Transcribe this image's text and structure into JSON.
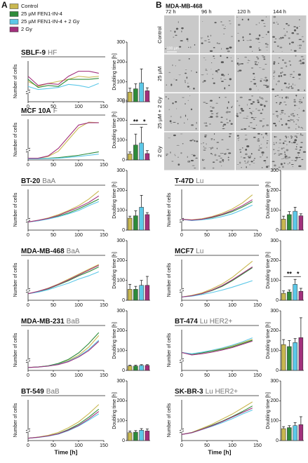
{
  "figure": {
    "panel_labels": [
      "A",
      "B"
    ],
    "legend": [
      {
        "name": "Control",
        "color": "#c9b850"
      },
      {
        "name": "25 µM FEN1-IN-4",
        "color": "#2e8b3a"
      },
      {
        "name": "25 µM FEN1-IN-4 + 2 Gy",
        "color": "#5cc8e8"
      },
      {
        "name": "2 Gy",
        "color": "#a2307c"
      }
    ],
    "axis_labels": {
      "cells": "Number of cells",
      "doubling": "Doubling time [h]",
      "time": "Time [h]"
    },
    "images": {
      "title": "MDA-MB-468",
      "columns": [
        "72 h",
        "96 h",
        "120 h",
        "144 h"
      ],
      "rows": [
        "Control",
        "25 µM",
        "25 µM + 2 Gy",
        "2 Gy"
      ],
      "scale_bar": "100 µm"
    }
  },
  "chart_data": [
    {
      "type": "line",
      "title": "SBLF-9",
      "subtitle": "HF",
      "x": [
        0,
        20,
        40,
        60,
        80,
        100,
        120,
        140
      ],
      "xlim": [
        0,
        150
      ],
      "xticks": [
        0,
        50,
        100,
        150
      ],
      "ylim": [
        0,
        40
      ],
      "series": [
        {
          "values": [
            20,
            15,
            18,
            20,
            22,
            25,
            24,
            25
          ]
        },
        {
          "values": [
            22,
            14,
            16,
            15,
            22,
            22,
            22,
            23
          ]
        },
        {
          "values": [
            15,
            12,
            13,
            14,
            17,
            16,
            14,
            18
          ]
        },
        {
          "values": [
            25,
            16,
            18,
            17,
            25,
            30,
            30,
            28
          ]
        }
      ]
    },
    {
      "type": "bar",
      "values": [
        48,
        65,
        95,
        55
      ],
      "errors": [
        20,
        25,
        70,
        15
      ],
      "ylim": [
        0,
        300
      ],
      "yticks": [
        0,
        100,
        200,
        300
      ]
    },
    {
      "type": "line",
      "title": "MCF 10A",
      "subtitle": "F",
      "x": [
        0,
        20,
        40,
        60,
        80,
        100,
        120,
        140
      ],
      "xlim": [
        0,
        150
      ],
      "xticks": [
        0,
        50,
        100,
        150
      ],
      "ylim": [
        0,
        700
      ],
      "series": [
        {
          "values": [
            30,
            30,
            60,
            150,
            350,
            550,
            650,
            640
          ]
        },
        {
          "values": [
            25,
            25,
            30,
            40,
            60,
            80,
            110,
            140
          ]
        },
        {
          "values": [
            20,
            20,
            25,
            30,
            45,
            60,
            80,
            100
          ]
        },
        {
          "values": [
            30,
            30,
            70,
            200,
            400,
            600,
            640,
            640
          ]
        }
      ]
    },
    {
      "type": "bar",
      "values": [
        30,
        75,
        85,
        32
      ],
      "errors": [
        10,
        55,
        80,
        15
      ],
      "ylim": [
        0,
        300
      ],
      "yticks": [
        0,
        100,
        200,
        300
      ],
      "annotations": [
        "**",
        "*"
      ]
    },
    {
      "type": "line",
      "title": "BT-20",
      "subtitle": "BaA",
      "x": [
        0,
        20,
        40,
        60,
        80,
        100,
        120,
        140
      ],
      "xlim": [
        0,
        150
      ],
      "xticks": [
        0,
        50,
        100,
        150
      ],
      "ylim": [
        0,
        250
      ],
      "series": [
        {
          "values": [
            50,
            60,
            75,
            95,
            120,
            150,
            190,
            240
          ]
        },
        {
          "values": [
            50,
            58,
            70,
            85,
            105,
            130,
            160,
            190
          ]
        },
        {
          "values": [
            50,
            57,
            68,
            82,
            100,
            120,
            150,
            175
          ]
        },
        {
          "values": [
            50,
            60,
            72,
            90,
            115,
            140,
            170,
            210
          ]
        }
      ]
    },
    {
      "type": "bar",
      "values": [
        60,
        72,
        115,
        78
      ],
      "errors": [
        10,
        25,
        60,
        10
      ],
      "ylim": [
        0,
        300
      ],
      "yticks": [
        0,
        100,
        200,
        300
      ]
    },
    {
      "type": "line",
      "title": "MDA-MB-468",
      "subtitle": "BaA",
      "x": [
        0,
        20,
        40,
        60,
        80,
        100,
        120,
        140
      ],
      "xlim": [
        0,
        150
      ],
      "xticks": [
        0,
        50,
        100,
        150
      ],
      "ylim": [
        0,
        500
      ],
      "series": [
        {
          "values": [
            80,
            110,
            150,
            200,
            260,
            320,
            380,
            440
          ]
        },
        {
          "values": [
            80,
            105,
            140,
            190,
            240,
            300,
            350,
            410
          ]
        },
        {
          "values": [
            80,
            100,
            130,
            170,
            210,
            260,
            300,
            350
          ]
        },
        {
          "values": [
            80,
            110,
            145,
            195,
            250,
            310,
            370,
            430
          ]
        }
      ]
    },
    {
      "type": "bar",
      "values": [
        55,
        55,
        75,
        75
      ],
      "errors": [
        25,
        15,
        25,
        45
      ],
      "ylim": [
        0,
        300
      ],
      "yticks": [
        0,
        100,
        200,
        300
      ]
    },
    {
      "type": "line",
      "title": "MDA-MB-231",
      "subtitle": "BaB",
      "x": [
        0,
        20,
        40,
        60,
        80,
        100,
        120,
        140
      ],
      "xlim": [
        0,
        150
      ],
      "xticks": [
        0,
        50,
        100,
        150
      ],
      "ylim": [
        0,
        700
      ],
      "series": [
        {
          "values": [
            50,
            60,
            80,
            110,
            170,
            260,
            400,
            600
          ]
        },
        {
          "values": [
            50,
            60,
            80,
            120,
            190,
            300,
            460,
            650
          ]
        },
        {
          "values": [
            50,
            58,
            75,
            105,
            160,
            240,
            360,
            520
          ]
        },
        {
          "values": [
            50,
            58,
            74,
            100,
            150,
            230,
            340,
            500
          ]
        }
      ]
    },
    {
      "type": "bar",
      "values": [
        22,
        22,
        25,
        25
      ],
      "errors": [
        4,
        4,
        4,
        4
      ],
      "ylim": [
        0,
        300
      ],
      "yticks": [
        0,
        100,
        200,
        300
      ]
    },
    {
      "type": "line",
      "title": "BT-549",
      "subtitle": "BaB",
      "x": [
        0,
        20,
        40,
        60,
        80,
        100,
        120,
        140
      ],
      "xlim": [
        0,
        150
      ],
      "xticks": [
        0,
        50,
        100,
        150
      ],
      "ylim": [
        0,
        350
      ],
      "series": [
        {
          "values": [
            20,
            30,
            45,
            70,
            110,
            160,
            230,
            310
          ]
        },
        {
          "values": [
            20,
            28,
            40,
            60,
            95,
            140,
            200,
            270
          ]
        },
        {
          "values": [
            20,
            27,
            38,
            55,
            85,
            125,
            175,
            230
          ]
        },
        {
          "values": [
            20,
            28,
            40,
            58,
            90,
            130,
            185,
            250
          ]
        }
      ]
    },
    {
      "type": "bar",
      "values": [
        40,
        42,
        52,
        48
      ],
      "errors": [
        8,
        8,
        8,
        10
      ],
      "ylim": [
        0,
        300
      ],
      "yticks": [
        0,
        100,
        200,
        300
      ]
    },
    {
      "type": "line",
      "title": "T-47D",
      "subtitle": "Lu",
      "x": [
        0,
        20,
        40,
        60,
        80,
        100,
        120,
        140
      ],
      "xlim": [
        0,
        150
      ],
      "xticks": [
        0,
        50,
        100,
        150
      ],
      "ylim": [
        0,
        150
      ],
      "series": [
        {
          "values": [
            40,
            38,
            42,
            50,
            62,
            78,
            100,
            130
          ]
        },
        {
          "values": [
            40,
            36,
            40,
            46,
            56,
            68,
            85,
            105
          ]
        },
        {
          "values": [
            40,
            35,
            38,
            42,
            50,
            60,
            75,
            92
          ]
        },
        {
          "values": [
            40,
            37,
            40,
            48,
            58,
            72,
            90,
            112
          ]
        }
      ]
    },
    {
      "type": "bar",
      "values": [
        55,
        78,
        95,
        72
      ],
      "errors": [
        15,
        15,
        20,
        10
      ],
      "ylim": [
        0,
        300
      ],
      "yticks": [
        0,
        100,
        200,
        300
      ]
    },
    {
      "type": "line",
      "title": "MCF7",
      "subtitle": "Lu",
      "x": [
        0,
        20,
        40,
        60,
        80,
        100,
        120,
        140
      ],
      "xlim": [
        0,
        150
      ],
      "xticks": [
        0,
        50,
        100,
        150
      ],
      "ylim": [
        0,
        500
      ],
      "series": [
        {
          "values": [
            40,
            60,
            90,
            140,
            200,
            280,
            380,
            480
          ]
        },
        {
          "values": [
            40,
            55,
            80,
            120,
            170,
            240,
            320,
            400
          ]
        },
        {
          "values": [
            40,
            50,
            70,
            95,
            125,
            160,
            200,
            240
          ]
        },
        {
          "values": [
            40,
            55,
            82,
            125,
            180,
            250,
            330,
            410
          ]
        }
      ]
    },
    {
      "type": "bar",
      "values": [
        35,
        42,
        80,
        45
      ],
      "errors": [
        12,
        10,
        25,
        15
      ],
      "ylim": [
        0,
        300
      ],
      "yticks": [
        0,
        100,
        200,
        300
      ],
      "annotations": [
        "**",
        "*"
      ]
    },
    {
      "type": "line",
      "title": "BT-474",
      "subtitle": "Lu HER2+",
      "x": [
        0,
        20,
        40,
        60,
        80,
        100,
        120,
        140
      ],
      "xlim": [
        0,
        150
      ],
      "xticks": [
        0,
        50,
        100,
        150
      ],
      "ylim": [
        0,
        250
      ],
      "series": [
        {
          "values": [
            110,
            100,
            110,
            120,
            135,
            150,
            170,
            190
          ]
        },
        {
          "values": [
            110,
            100,
            108,
            118,
            130,
            145,
            165,
            185
          ]
        },
        {
          "values": [
            110,
            102,
            112,
            124,
            138,
            155,
            175,
            200
          ]
        },
        {
          "values": [
            110,
            95,
            102,
            112,
            125,
            140,
            160,
            180
          ]
        }
      ]
    },
    {
      "type": "bar",
      "values": [
        130,
        120,
        140,
        165
      ],
      "errors": [
        25,
        30,
        20,
        100
      ],
      "ylim": [
        0,
        300
      ],
      "yticks": [
        0,
        100,
        200,
        300
      ]
    },
    {
      "type": "line",
      "title": "SK-BR-3",
      "subtitle": "Lu HER2+",
      "x": [
        0,
        20,
        40,
        60,
        80,
        100,
        120,
        140
      ],
      "xlim": [
        0,
        150
      ],
      "xticks": [
        0,
        50,
        100,
        150
      ],
      "ylim": [
        0,
        400
      ],
      "series": [
        {
          "values": [
            60,
            80,
            120,
            160,
            210,
            260,
            320,
            380
          ]
        },
        {
          "values": [
            60,
            78,
            112,
            150,
            190,
            235,
            285,
            340
          ]
        },
        {
          "values": [
            60,
            76,
            108,
            140,
            175,
            215,
            260,
            300
          ]
        },
        {
          "values": [
            60,
            77,
            110,
            145,
            185,
            230,
            275,
            320
          ]
        }
      ]
    },
    {
      "type": "bar",
      "values": [
        60,
        65,
        75,
        80
      ],
      "errors": [
        10,
        10,
        15,
        40
      ],
      "ylim": [
        0,
        300
      ],
      "yticks": [
        0,
        100,
        200,
        300
      ]
    }
  ]
}
